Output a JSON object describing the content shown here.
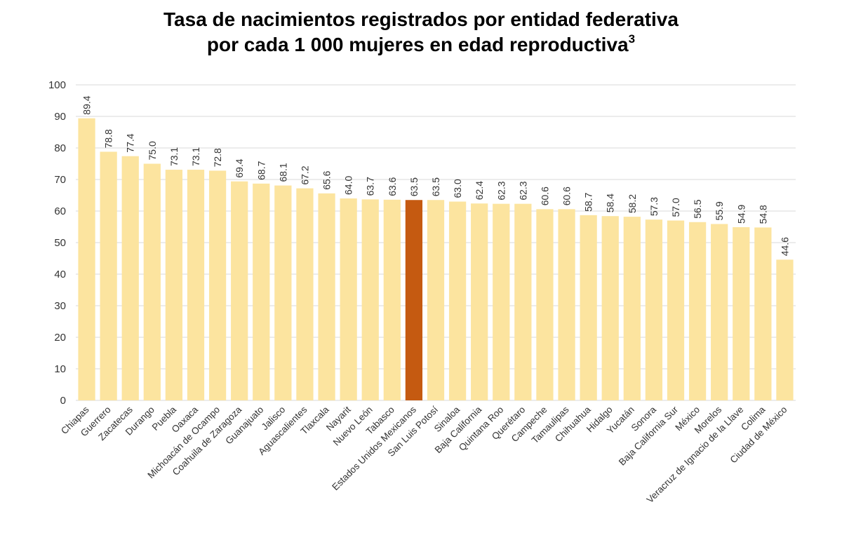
{
  "chart_data": {
    "type": "bar",
    "title_line1": "Tasa de nacimientos registrados por entidad federativa",
    "title_line2": "por cada 1 000 mujeres en edad reproductiva",
    "title_superscript": "3",
    "xlabel": "",
    "ylabel": "",
    "ylim": [
      0,
      100
    ],
    "yticks": [
      0,
      10,
      20,
      30,
      40,
      50,
      60,
      70,
      80,
      90,
      100
    ],
    "grid": true,
    "legend": "none",
    "categories": [
      "Chiapas",
      "Guerrero",
      "Zacatecas",
      "Durango",
      "Puebla",
      "Oaxaca",
      "Michoacán de Ocampo",
      "Coahuila de Zaragoza",
      "Guanajuato",
      "Jalisco",
      "Aguascalientes",
      "Tlaxcala",
      "Nayarit",
      "Nuevo León",
      "Tabasco",
      "Estados Unidos Mexicanos",
      "San Luis Potosí",
      "Sinaloa",
      "Baja California",
      "Quintana Roo",
      "Querétaro",
      "Campeche",
      "Tamaulipas",
      "Chihuahua",
      "Hidalgo",
      "Yucatán",
      "Sonora",
      "Baja California Sur",
      "México",
      "Morelos",
      "Veracruz de Ignacio de la Llave",
      "Colima",
      "Ciudad de México"
    ],
    "values": [
      89.4,
      78.8,
      77.4,
      75.0,
      73.1,
      73.1,
      72.8,
      69.4,
      68.7,
      68.1,
      67.2,
      65.6,
      64.0,
      63.7,
      63.6,
      63.5,
      63.5,
      63.0,
      62.4,
      62.3,
      62.3,
      60.6,
      60.6,
      58.7,
      58.4,
      58.2,
      57.3,
      57.0,
      56.5,
      55.9,
      54.9,
      54.8,
      44.6
    ],
    "value_labels": [
      "89.4",
      "78.8",
      "77.4",
      "75.0",
      "73.1",
      "73.1",
      "72.8",
      "69.4",
      "68.7",
      "68.1",
      "67.2",
      "65.6",
      "64.0",
      "63.7",
      "63.6",
      "63.5",
      "63.5",
      "63.0",
      "62.4",
      "62.3",
      "62.3",
      "60.6",
      "60.6",
      "58.7",
      "58.4",
      "58.2",
      "57.3",
      "57.0",
      "56.5",
      "55.9",
      "54.9",
      "54.8",
      "44.6"
    ],
    "highlight_category": "Estados Unidos Mexicanos",
    "colors": {
      "bar": "#FCE49F",
      "highlight": "#C55A11",
      "grid": "#D9D9D9",
      "text": "#333333"
    }
  }
}
